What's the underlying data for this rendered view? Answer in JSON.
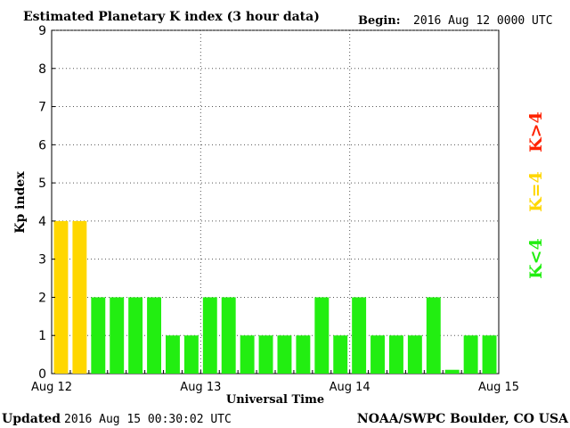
{
  "header": {
    "title": "Estimated Planetary K index (3 hour data)",
    "begin_label": "Begin:",
    "begin_value": "2016 Aug 12 0000 UTC"
  },
  "footer": {
    "updated_label": "Updated",
    "updated_value": "2016 Aug 15 00:30:02 UTC",
    "credit": "NOAA/SWPC Boulder, CO USA"
  },
  "legend": {
    "storm": {
      "label": "K>4",
      "color": "#ff2200"
    },
    "active": {
      "label": "K=4",
      "color": "#ffd700"
    },
    "quiet": {
      "label": "K<4",
      "color": "#22ee11"
    }
  },
  "chart_data": {
    "type": "bar",
    "title": "Estimated Planetary K index (3 hour data)",
    "xlabel": "Universal Time",
    "ylabel": "Kp index",
    "ylim": [
      0,
      9
    ],
    "yticks": [
      "0",
      "1",
      "2",
      "3",
      "4",
      "5",
      "6",
      "7",
      "8",
      "9"
    ],
    "xticks": [
      "Aug 12",
      "Aug 13",
      "Aug 14",
      "Aug 15"
    ],
    "bin_hours": 3,
    "grid": true,
    "values": [
      4,
      4,
      2,
      2,
      2,
      2,
      1,
      1,
      2,
      2,
      1,
      1,
      1,
      1,
      2,
      1,
      2,
      1,
      1,
      1,
      2,
      0.1,
      1,
      1
    ],
    "colors": {
      "lt4": "#22ee11",
      "eq4": "#ffd700",
      "gt4": "#ff2200"
    }
  }
}
